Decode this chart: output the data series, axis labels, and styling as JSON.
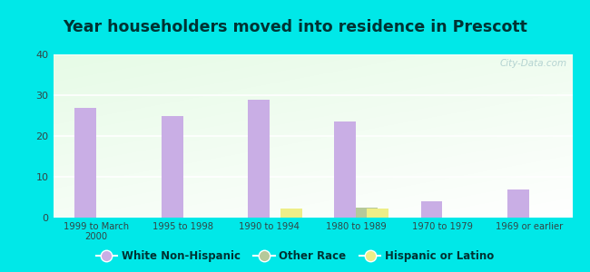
{
  "title": "Year householders moved into residence in Prescott",
  "categories": [
    "1999 to March\n2000",
    "1995 to 1998",
    "1990 to 1994",
    "1980 to 1989",
    "1970 to 1979",
    "1969 or earlier"
  ],
  "white_non_hispanic": [
    27,
    25,
    29,
    23.5,
    4,
    7
  ],
  "other_race": [
    0,
    0,
    0,
    2.5,
    0,
    0
  ],
  "hispanic_or_latino": [
    0,
    0,
    2.3,
    2.3,
    0,
    0
  ],
  "white_color": "#c9aee5",
  "other_color": "#b5c99a",
  "hispanic_color": "#eeee88",
  "bg_outer": "#00e8e8",
  "ylim": [
    0,
    40
  ],
  "yticks": [
    0,
    10,
    20,
    30,
    40
  ],
  "bar_width": 0.25,
  "watermark": "City-Data.com",
  "title_color": "#003333"
}
